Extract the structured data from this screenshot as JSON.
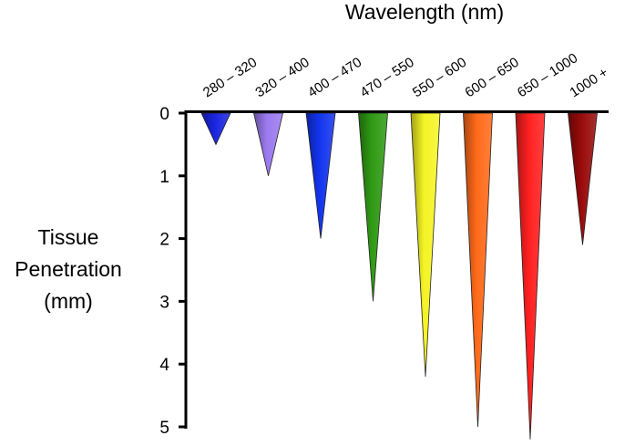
{
  "chart_data": {
    "type": "bar",
    "title": "Wavelength (nm)",
    "ylabel_lines": [
      "Tissue",
      "Penetration",
      "(mm)"
    ],
    "categories": [
      "280 – 320",
      "320 – 400",
      "400 – 470",
      "470 – 550",
      "550 – 600",
      "600 – 650",
      "650 – 1000",
      "1000 +"
    ],
    "values": [
      0.5,
      1.0,
      2.0,
      3.0,
      4.2,
      5.0,
      5.2,
      2.1
    ],
    "colors": [
      "#1a24e0",
      "#9b7af0",
      "#1234ee",
      "#2f9a14",
      "#f4f425",
      "#ff6a1a",
      "#ff2020",
      "#990a0a"
    ],
    "yticks": [
      0,
      1,
      2,
      3,
      4,
      5
    ],
    "ylim": [
      0,
      5
    ],
    "y_inverted": true,
    "grid": false
  }
}
